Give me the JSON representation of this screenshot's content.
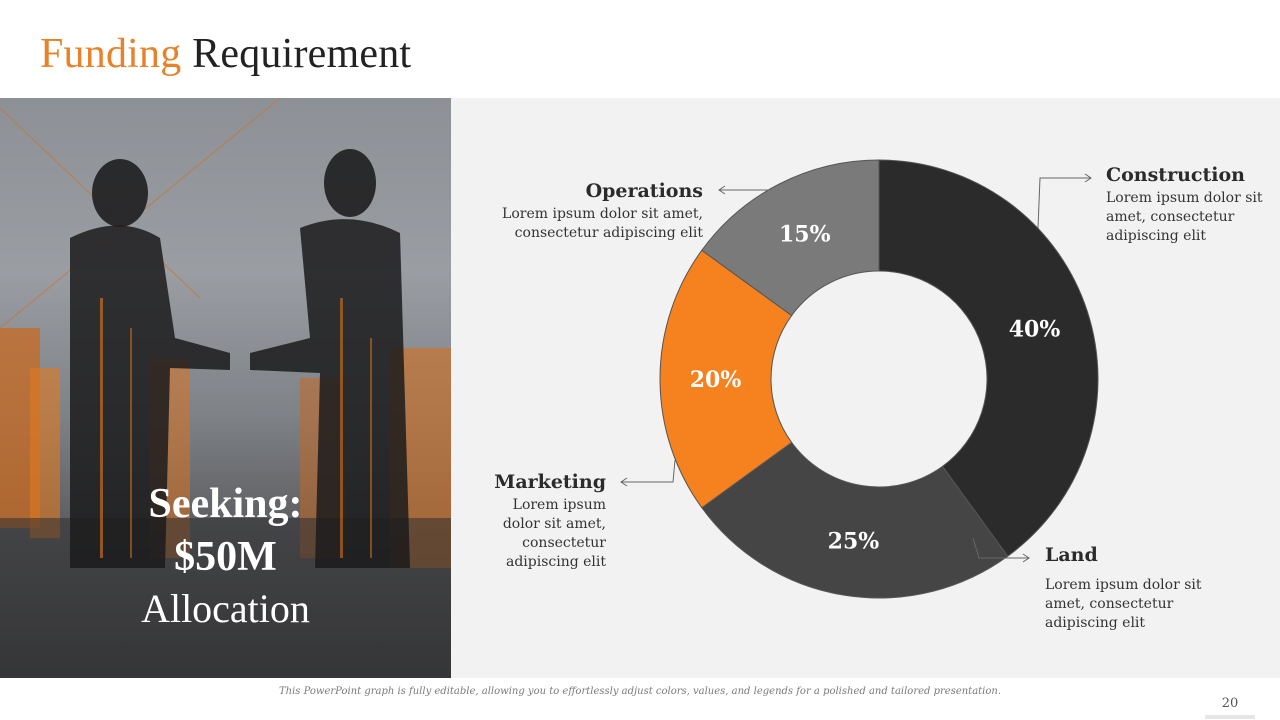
{
  "title": {
    "accent": "Funding",
    "rest": "Requirement"
  },
  "photo": {
    "line1": "Seeking:",
    "line2": "$50M",
    "line3": "Allocation"
  },
  "chart_data": {
    "type": "pie",
    "categories": [
      "Construction",
      "Land",
      "Marketing",
      "Operations"
    ],
    "values": [
      40,
      25,
      20,
      15
    ],
    "labels": [
      "40%",
      "25%",
      "20%",
      "15%"
    ],
    "colors": [
      "#2b2b2b",
      "#454545",
      "#f5821f",
      "#7a7a7a"
    ]
  },
  "labels": {
    "construction": {
      "heading": "Construction",
      "desc": "Lorem ipsum dolor sit amet, consectetur adipiscing elit"
    },
    "land": {
      "heading": "Land",
      "desc": "Lorem ipsum dolor sit amet, consectetur adipiscing elit"
    },
    "marketing": {
      "heading": "Marketing",
      "desc": "Lorem ipsum dolor sit amet, consectetur adipiscing elit"
    },
    "operations": {
      "heading": "Operations",
      "desc": "Lorem ipsum dolor sit amet, consectetur adipiscing elit"
    }
  },
  "footer": "This PowerPoint graph is fully editable, allowing you to effortlessly adjust colors, values, and legends for a polished and tailored presentation.",
  "page_number": "20"
}
